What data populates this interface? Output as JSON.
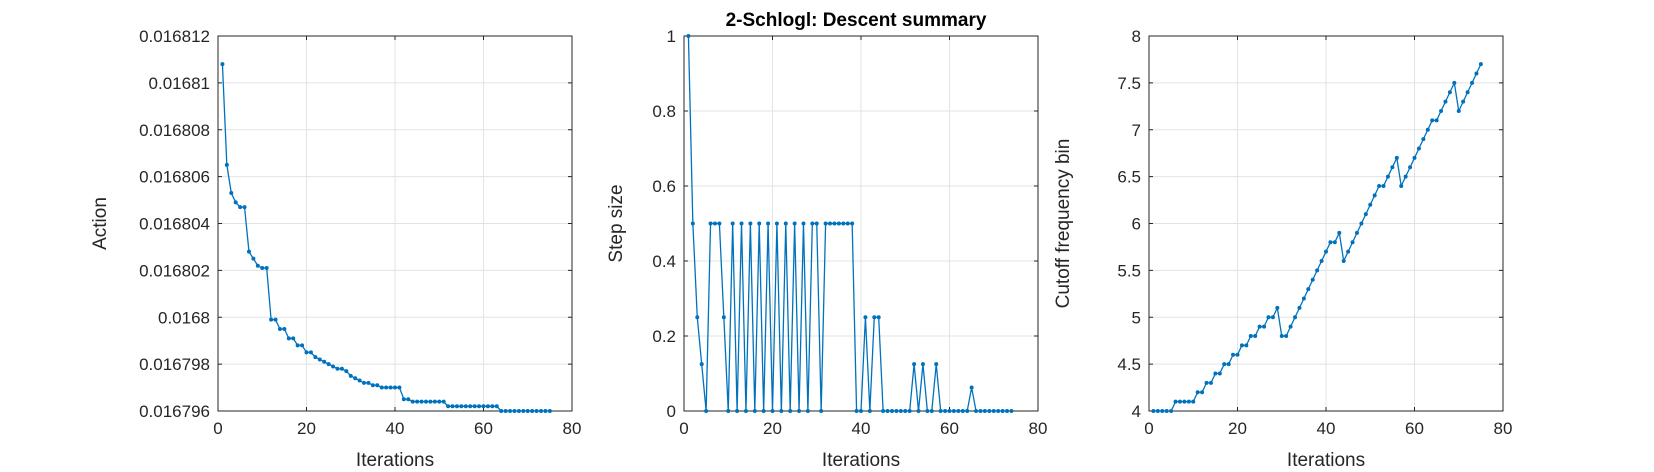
{
  "chart_data": {
    "title": "2-Schlogl: Descent summary",
    "series_color": "#0072BD",
    "grid": true,
    "panels": [
      {
        "type": "line",
        "ylabel": "Action",
        "xlabel": "Iterations",
        "xlim": [
          0,
          80
        ],
        "ylim": [
          0.016796,
          0.016812
        ],
        "xticks": [
          0,
          20,
          40,
          60,
          80
        ],
        "xtick_labels": [
          "0",
          "20",
          "40",
          "60",
          "80"
        ],
        "yticks": [
          0.016796,
          0.016798,
          0.0168,
          0.016802,
          0.016804,
          0.016806,
          0.016808,
          0.01681,
          0.016812
        ],
        "ytick_labels": [
          "0.016796",
          "0.016798",
          "0.0168",
          "0.016802",
          "0.016804",
          "0.016806",
          "0.016808",
          "0.01681",
          "0.016812"
        ],
        "x": [
          1,
          2,
          3,
          4,
          5,
          6,
          7,
          8,
          9,
          10,
          11,
          12,
          13,
          14,
          15,
          16,
          17,
          18,
          19,
          20,
          21,
          22,
          23,
          24,
          25,
          26,
          27,
          28,
          29,
          30,
          31,
          32,
          33,
          34,
          35,
          36,
          37,
          38,
          39,
          40,
          41,
          42,
          43,
          44,
          45,
          46,
          47,
          48,
          49,
          50,
          51,
          52,
          53,
          54,
          55,
          56,
          57,
          58,
          59,
          60,
          61,
          62,
          63,
          64,
          65,
          66,
          67,
          68,
          69,
          70,
          71,
          72,
          73,
          74,
          75
        ],
        "y": [
          0.0168108,
          0.0168065,
          0.0168053,
          0.0168049,
          0.0168047,
          0.0168047,
          0.0168028,
          0.0168025,
          0.0168022,
          0.0168021,
          0.0168021,
          0.0167999,
          0.0167999,
          0.0167995,
          0.0167995,
          0.0167991,
          0.0167991,
          0.0167988,
          0.0167988,
          0.0167985,
          0.0167985,
          0.0167983,
          0.0167982,
          0.0167981,
          0.016798,
          0.0167979,
          0.0167978,
          0.0167978,
          0.0167977,
          0.0167975,
          0.0167974,
          0.0167973,
          0.0167972,
          0.0167972,
          0.0167971,
          0.0167971,
          0.016797,
          0.016797,
          0.016797,
          0.016797,
          0.016797,
          0.0167965,
          0.0167965,
          0.0167964,
          0.0167964,
          0.0167964,
          0.0167964,
          0.0167964,
          0.0167964,
          0.0167964,
          0.0167964,
          0.0167962,
          0.0167962,
          0.0167962,
          0.0167962,
          0.0167962,
          0.0167962,
          0.0167962,
          0.0167962,
          0.0167962,
          0.0167962,
          0.0167962,
          0.0167962,
          0.016796,
          0.016796,
          0.016796,
          0.016796,
          0.016796,
          0.016796,
          0.016796,
          0.016796,
          0.016796,
          0.016796,
          0.016796,
          0.016796
        ]
      },
      {
        "type": "line",
        "ylabel": "Step size",
        "xlabel": "Iterations",
        "xlim": [
          0,
          80
        ],
        "ylim": [
          0,
          1
        ],
        "xticks": [
          0,
          20,
          40,
          60,
          80
        ],
        "xtick_labels": [
          "0",
          "20",
          "40",
          "60",
          "80"
        ],
        "yticks": [
          0,
          0.2,
          0.4,
          0.6,
          0.8,
          1
        ],
        "ytick_labels": [
          "0",
          "0.2",
          "0.4",
          "0.6",
          "0.8",
          "1"
        ],
        "x": [
          1,
          2,
          3,
          4,
          5,
          6,
          7,
          8,
          9,
          10,
          11,
          12,
          13,
          14,
          15,
          16,
          17,
          18,
          19,
          20,
          21,
          22,
          23,
          24,
          25,
          26,
          27,
          28,
          29,
          30,
          31,
          32,
          33,
          34,
          35,
          36,
          37,
          38,
          39,
          40,
          41,
          42,
          43,
          44,
          45,
          46,
          47,
          48,
          49,
          50,
          51,
          52,
          53,
          54,
          55,
          56,
          57,
          58,
          59,
          60,
          61,
          62,
          63,
          64,
          65,
          66,
          67,
          68,
          69,
          70,
          71,
          72,
          73,
          74
        ],
        "y": [
          1,
          0.5,
          0.25,
          0.125,
          0,
          0.5,
          0.5,
          0.5,
          0.25,
          0,
          0.5,
          0,
          0.5,
          0,
          0.5,
          0,
          0.5,
          0,
          0.5,
          0,
          0.5,
          0,
          0.5,
          0,
          0.5,
          0,
          0.5,
          0,
          0.5,
          0.5,
          0,
          0.5,
          0.5,
          0.5,
          0.5,
          0.5,
          0.5,
          0.5,
          0,
          0,
          0.25,
          0,
          0.25,
          0.25,
          0,
          0,
          0,
          0,
          0,
          0,
          0,
          0.125,
          0,
          0.125,
          0,
          0,
          0.125,
          0,
          0,
          0,
          0,
          0,
          0,
          0,
          0.0625,
          0,
          0,
          0,
          0,
          0,
          0,
          0,
          0,
          0
        ]
      },
      {
        "type": "line",
        "ylabel": "Cutoff frequency bin",
        "xlabel": "Iterations",
        "xlim": [
          0,
          80
        ],
        "ylim": [
          4,
          8
        ],
        "xticks": [
          0,
          20,
          40,
          60,
          80
        ],
        "xtick_labels": [
          "0",
          "20",
          "40",
          "60",
          "80"
        ],
        "yticks": [
          4,
          4.5,
          5,
          5.5,
          6,
          6.5,
          7,
          7.5,
          8
        ],
        "ytick_labels": [
          "4",
          "4.5",
          "5",
          "5.5",
          "6",
          "6.5",
          "7",
          "7.5",
          "8"
        ],
        "x": [
          1,
          2,
          3,
          4,
          5,
          6,
          7,
          8,
          9,
          10,
          11,
          12,
          13,
          14,
          15,
          16,
          17,
          18,
          19,
          20,
          21,
          22,
          23,
          24,
          25,
          26,
          27,
          28,
          29,
          30,
          31,
          32,
          33,
          34,
          35,
          36,
          37,
          38,
          39,
          40,
          41,
          42,
          43,
          44,
          45,
          46,
          47,
          48,
          49,
          50,
          51,
          52,
          53,
          54,
          55,
          56,
          57,
          58,
          59,
          60,
          61,
          62,
          63,
          64,
          65,
          66,
          67,
          68,
          69,
          70,
          71,
          72,
          73,
          74,
          75
        ],
        "y": [
          4,
          4,
          4,
          4,
          4,
          4.1,
          4.1,
          4.1,
          4.1,
          4.1,
          4.2,
          4.2,
          4.3,
          4.3,
          4.4,
          4.4,
          4.5,
          4.5,
          4.6,
          4.6,
          4.7,
          4.7,
          4.8,
          4.8,
          4.9,
          4.9,
          5,
          5,
          5.1,
          4.8,
          4.8,
          4.9,
          5,
          5.1,
          5.2,
          5.3,
          5.4,
          5.5,
          5.6,
          5.7,
          5.8,
          5.8,
          5.9,
          5.6,
          5.7,
          5.8,
          5.9,
          6,
          6.1,
          6.2,
          6.3,
          6.4,
          6.4,
          6.5,
          6.6,
          6.7,
          6.4,
          6.5,
          6.6,
          6.7,
          6.8,
          6.9,
          7,
          7.1,
          7.1,
          7.2,
          7.3,
          7.4,
          7.5,
          7.2,
          7.3,
          7.4,
          7.5,
          7.6,
          7.7
        ]
      }
    ]
  }
}
